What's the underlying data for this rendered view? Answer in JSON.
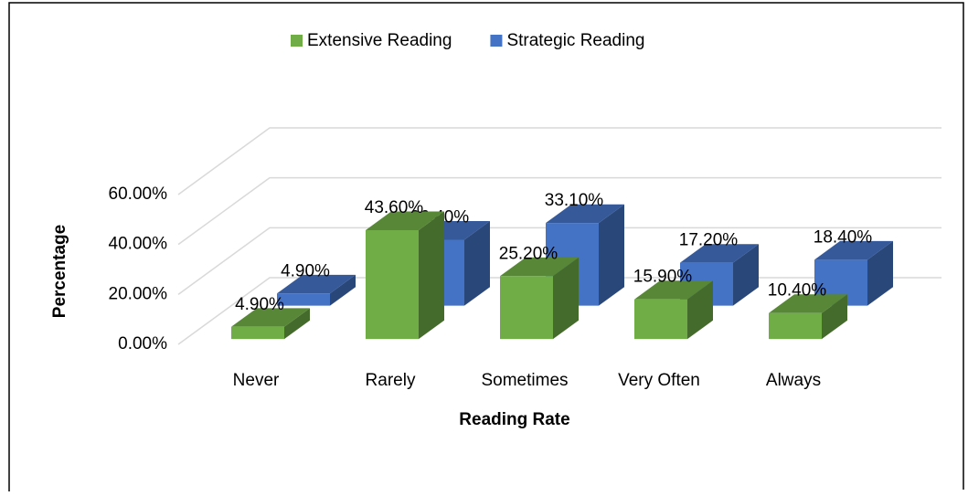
{
  "chart_data": {
    "type": "bar3d",
    "categories": [
      "Never",
      "Rarely",
      "Sometimes",
      "Very Often",
      "Always"
    ],
    "series": [
      {
        "name": "Extensive Reading",
        "color": "#70ad47",
        "values": [
          4.9,
          43.6,
          25.2,
          15.9,
          10.4
        ],
        "value_labels": [
          "4.90%",
          "43.60%",
          "25.20%",
          "15.90%",
          "10.40%"
        ]
      },
      {
        "name": "Strategic Reading",
        "color": "#4472c4",
        "values": [
          4.9,
          26.4,
          33.1,
          17.2,
          18.4
        ],
        "value_labels": [
          "4.90%",
          "26.40%",
          "33.10%",
          "17.20%",
          "18.40%"
        ]
      }
    ],
    "ylim": [
      0,
      60
    ],
    "yticks": [
      {
        "value": 0,
        "label": "0.00%"
      },
      {
        "value": 20,
        "label": "20.00%"
      },
      {
        "value": 40,
        "label": "40.00%"
      },
      {
        "value": 60,
        "label": "60.00%"
      }
    ],
    "grid": true,
    "legend": "top",
    "xlabel": "Reading Rate",
    "ylabel": "Percentage"
  }
}
